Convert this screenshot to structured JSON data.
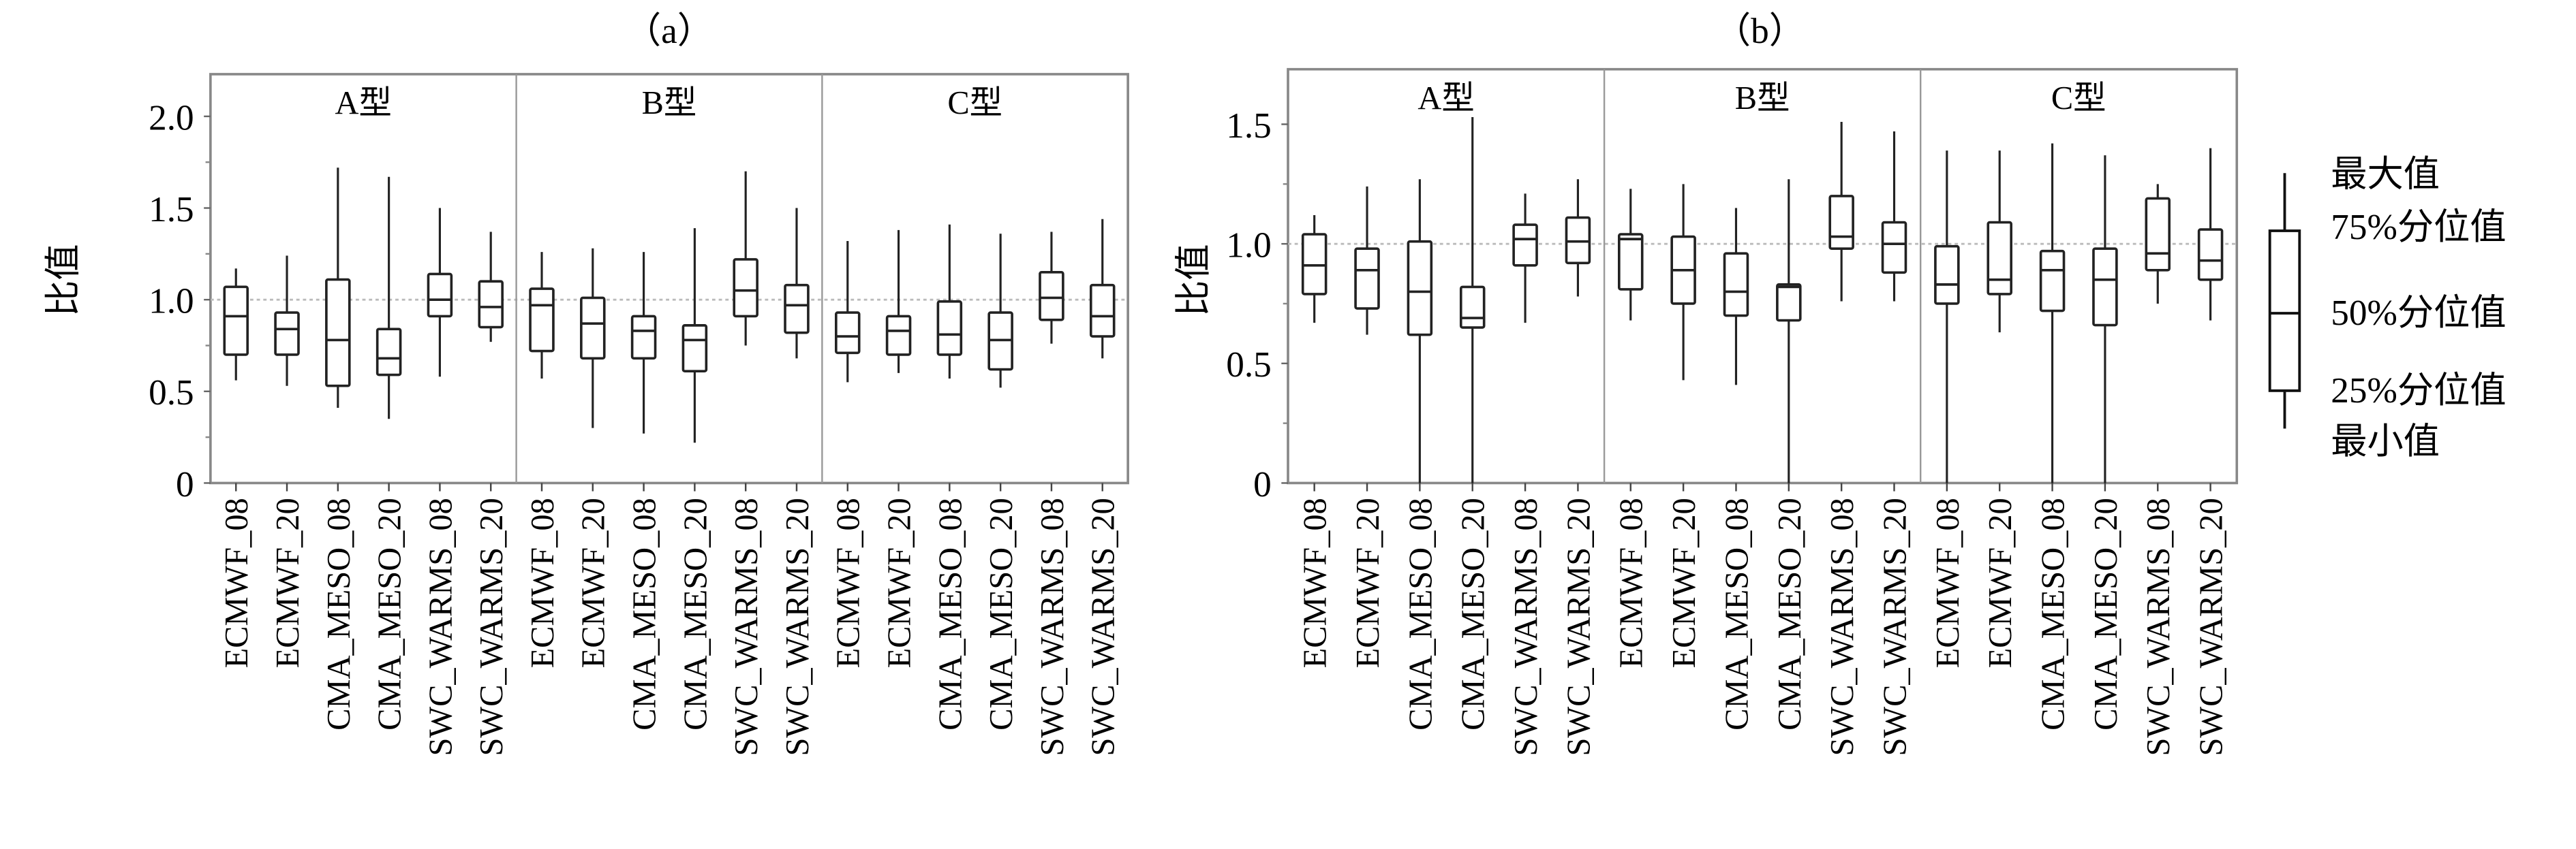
{
  "legend": {
    "max": "最大值",
    "q3": "75%分位值",
    "median": "50%分位值",
    "q1": "25%分位值",
    "min": "最小值"
  },
  "chart_data": [
    {
      "type": "box",
      "title": "（a）",
      "ylabel": "比值",
      "ylim": [
        0,
        2.23
      ],
      "yticks": [
        "0",
        "0.5",
        "1.0",
        "1.5",
        "2.0"
      ],
      "ytick_values": [
        0,
        0.5,
        1.0,
        1.5,
        2.0
      ],
      "reference_line": 1.0,
      "groups": [
        "A型",
        "B型",
        "C型"
      ],
      "categories": [
        "ECMWF_08",
        "ECMWF_20",
        "CMA_MESO_08",
        "CMA_MESO_20",
        "SWC_WARMS_08",
        "SWC_WARMS_20"
      ],
      "boxes": [
        [
          [
            0.56,
            0.7,
            0.91,
            1.07,
            1.17
          ],
          [
            0.53,
            0.7,
            0.84,
            0.93,
            1.24
          ],
          [
            0.41,
            0.53,
            0.78,
            1.11,
            1.72
          ],
          [
            0.35,
            0.59,
            0.68,
            0.84,
            1.67
          ],
          [
            0.58,
            0.91,
            1.0,
            1.14,
            1.5
          ],
          [
            0.77,
            0.85,
            0.96,
            1.1,
            1.37
          ]
        ],
        [
          [
            0.57,
            0.72,
            0.97,
            1.06,
            1.26
          ],
          [
            0.3,
            0.68,
            0.87,
            1.01,
            1.28
          ],
          [
            0.27,
            0.68,
            0.83,
            0.91,
            1.26
          ],
          [
            0.22,
            0.61,
            0.78,
            0.86,
            1.39
          ],
          [
            0.75,
            0.91,
            1.05,
            1.22,
            1.7
          ],
          [
            0.68,
            0.82,
            0.97,
            1.08,
            1.5
          ]
        ],
        [
          [
            0.55,
            0.71,
            0.8,
            0.93,
            1.32
          ],
          [
            0.6,
            0.7,
            0.83,
            0.91,
            1.38
          ],
          [
            0.57,
            0.7,
            0.81,
            0.99,
            1.41
          ],
          [
            0.52,
            0.62,
            0.78,
            0.93,
            1.36
          ],
          [
            0.76,
            0.89,
            1.01,
            1.15,
            1.37
          ],
          [
            0.68,
            0.8,
            0.91,
            1.08,
            1.44
          ]
        ]
      ]
    },
    {
      "type": "box",
      "title": "（b）",
      "ylabel": "比值",
      "ylim": [
        0,
        1.73
      ],
      "yticks": [
        "0",
        "0.5",
        "1.0",
        "1.5"
      ],
      "ytick_values": [
        0,
        0.5,
        1.0,
        1.5
      ],
      "reference_line": 1.0,
      "groups": [
        "A型",
        "B型",
        "C型"
      ],
      "categories": [
        "ECMWF_08",
        "ECMWF_20",
        "CMA_MESO_08",
        "CMA_MESO_20",
        "SWC_WARMS_08",
        "SWC_WARMS_20"
      ],
      "boxes": [
        [
          [
            0.67,
            0.79,
            0.91,
            1.04,
            1.12
          ],
          [
            0.62,
            0.73,
            0.89,
            0.98,
            1.24
          ],
          [
            0.0,
            0.62,
            0.8,
            1.01,
            1.27
          ],
          [
            0.0,
            0.65,
            0.69,
            0.82,
            1.53
          ],
          [
            0.67,
            0.91,
            1.02,
            1.08,
            1.21
          ],
          [
            0.78,
            0.92,
            1.01,
            1.11,
            1.27
          ]
        ],
        [
          [
            0.68,
            0.81,
            1.02,
            1.04,
            1.23
          ],
          [
            0.43,
            0.75,
            0.89,
            1.03,
            1.25
          ],
          [
            0.41,
            0.7,
            0.8,
            0.96,
            1.15
          ],
          [
            0.0,
            0.68,
            0.82,
            0.83,
            1.27
          ],
          [
            0.76,
            0.98,
            1.03,
            1.2,
            1.51
          ],
          [
            0.76,
            0.88,
            1.0,
            1.09,
            1.47
          ]
        ],
        [
          [
            0.0,
            0.75,
            0.83,
            0.99,
            1.39
          ],
          [
            0.63,
            0.79,
            0.85,
            1.09,
            1.39
          ],
          [
            0.0,
            0.72,
            0.89,
            0.97,
            1.42
          ],
          [
            0.0,
            0.66,
            0.85,
            0.98,
            1.37
          ],
          [
            0.75,
            0.89,
            0.96,
            1.19,
            1.25
          ],
          [
            0.68,
            0.85,
            0.93,
            1.06,
            1.4
          ]
        ]
      ]
    }
  ]
}
